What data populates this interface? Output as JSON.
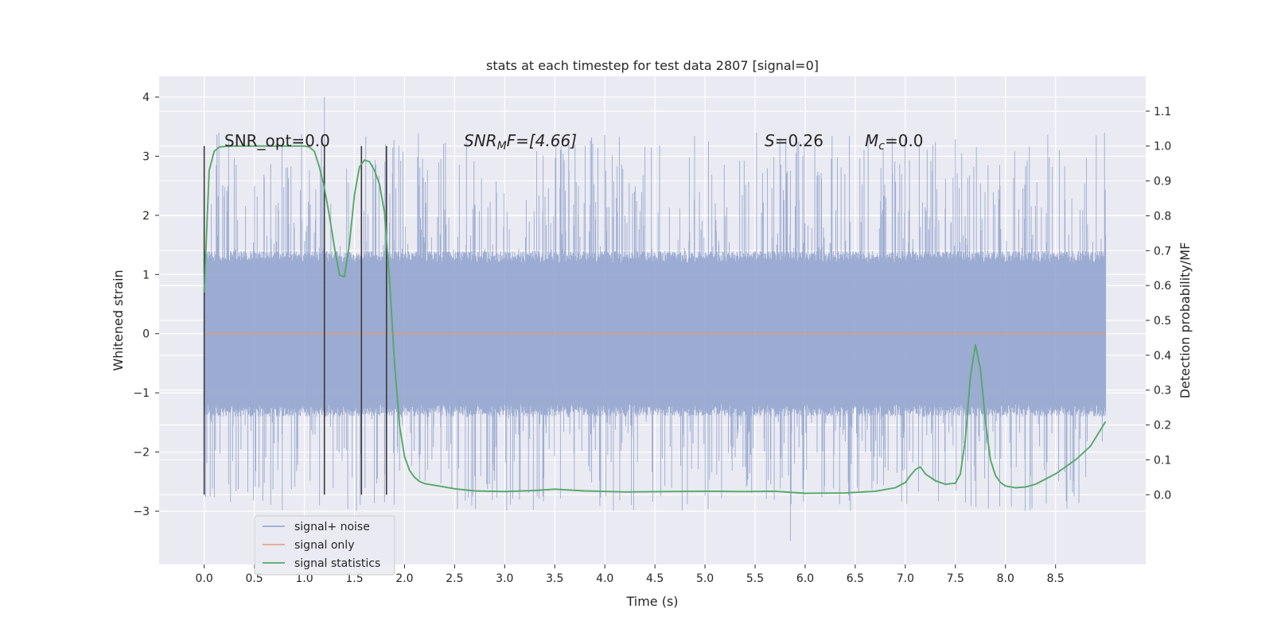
{
  "chart_data": {
    "type": "line",
    "title": "stats at each timestep for test data 2807 [signal=0]",
    "xlabel": "Time (s)",
    "ylabel": "Whitened strain",
    "ylabel_right": "Detection probability/MF",
    "xlim": [
      -0.45,
      9.4
    ],
    "ylim": [
      -3.9,
      4.35
    ],
    "ylim_right": [
      -0.2,
      1.2
    ],
    "xticks": [
      "0.0",
      "0.5",
      "1.0",
      "1.5",
      "2.0",
      "2.5",
      "3.0",
      "3.5",
      "4.0",
      "4.5",
      "5.0",
      "5.5",
      "6.0",
      "6.5",
      "7.0",
      "7.5",
      "8.0",
      "8.5"
    ],
    "yticks": [
      "−3",
      "−2",
      "−1",
      "0",
      "1",
      "2",
      "3",
      "4"
    ],
    "yticks_right": [
      "0.0",
      "0.1",
      "0.2",
      "0.3",
      "0.4",
      "0.5",
      "0.6",
      "0.7",
      "0.8",
      "0.9",
      "1.0",
      "1.1"
    ],
    "grid": true,
    "legend_position": "lower-left",
    "colors": {
      "signal_noise": "#8da0cb",
      "signal_only": "#e39a7c",
      "statistics": "#55a868",
      "markers": "#3a3a3a",
      "plot_bg": "#eaeaf2",
      "grid": "#ffffff"
    },
    "annotations": {
      "snr_opt": "SNR_opt=0.0",
      "snr_mf_main": "SNR",
      "snr_mf_sub": "M",
      "snr_mf_rest": "F=[4.66]",
      "s_var": "S",
      "s_rest": "=0.26",
      "mc_var": "M",
      "mc_sub": "c",
      "mc_rest": "=0.0"
    },
    "vertical_markers": [
      0.0,
      1.2,
      1.57,
      1.82
    ],
    "series": [
      {
        "name": "signal+ noise",
        "style": "noise",
        "x_range": [
          0.0,
          9.0
        ],
        "envelope": 1.4,
        "peak_max": 4.0,
        "peak_min": -3.5
      },
      {
        "name": "signal only",
        "style": "flat",
        "x": [
          0.0,
          9.0
        ],
        "y": [
          0.0,
          0.0
        ]
      },
      {
        "name": "signal statistics",
        "axis": "right",
        "x": [
          0.0,
          0.05,
          0.1,
          0.15,
          0.25,
          0.4,
          0.6,
          0.8,
          1.0,
          1.05,
          1.1,
          1.15,
          1.2,
          1.25,
          1.3,
          1.35,
          1.4,
          1.45,
          1.5,
          1.55,
          1.6,
          1.65,
          1.7,
          1.75,
          1.8,
          1.85,
          1.9,
          1.95,
          2.0,
          2.05,
          2.1,
          2.15,
          2.2,
          2.3,
          2.4,
          2.5,
          2.7,
          3.0,
          3.3,
          3.5,
          3.8,
          4.2,
          4.6,
          5.0,
          5.4,
          5.7,
          6.0,
          6.4,
          6.7,
          6.9,
          7.0,
          7.05,
          7.1,
          7.15,
          7.2,
          7.3,
          7.4,
          7.5,
          7.55,
          7.6,
          7.65,
          7.7,
          7.75,
          7.8,
          7.85,
          7.9,
          7.95,
          8.0,
          8.1,
          8.2,
          8.3,
          8.5,
          8.7,
          8.85,
          9.0
        ],
        "y": [
          0.58,
          0.93,
          0.985,
          0.997,
          1.0,
          1.0,
          1.0,
          1.0,
          1.0,
          0.997,
          0.985,
          0.94,
          0.88,
          0.8,
          0.71,
          0.63,
          0.625,
          0.72,
          0.86,
          0.94,
          0.96,
          0.955,
          0.93,
          0.89,
          0.81,
          0.62,
          0.38,
          0.2,
          0.11,
          0.07,
          0.05,
          0.038,
          0.032,
          0.027,
          0.022,
          0.017,
          0.011,
          0.009,
          0.012,
          0.016,
          0.011,
          0.008,
          0.009,
          0.01,
          0.009,
          0.01,
          0.004,
          0.005,
          0.01,
          0.02,
          0.035,
          0.055,
          0.072,
          0.08,
          0.06,
          0.04,
          0.03,
          0.033,
          0.06,
          0.16,
          0.34,
          0.43,
          0.36,
          0.21,
          0.1,
          0.055,
          0.035,
          0.025,
          0.02,
          0.022,
          0.03,
          0.06,
          0.1,
          0.14,
          0.21
        ]
      }
    ]
  }
}
